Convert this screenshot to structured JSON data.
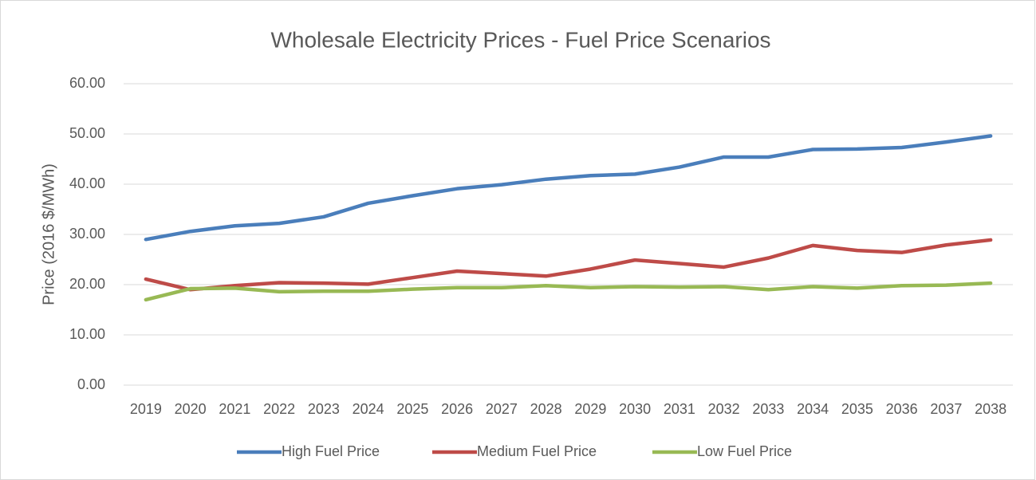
{
  "chart_data": {
    "type": "line",
    "title": "Wholesale Electricity Prices - Fuel Price Scenarios",
    "y_label": "Price (2016 $/MWh)",
    "categories": [
      "2019",
      "2020",
      "2021",
      "2022",
      "2023",
      "2024",
      "2025",
      "2026",
      "2027",
      "2028",
      "2029",
      "2030",
      "2031",
      "2032",
      "2033",
      "2034",
      "2035",
      "2036",
      "2037",
      "2038"
    ],
    "series": [
      {
        "name": "High Fuel Price",
        "color": "#4a7ebb",
        "values": [
          29.0,
          30.6,
          31.7,
          32.2,
          33.5,
          36.2,
          37.7,
          39.1,
          39.9,
          41.0,
          41.7,
          42.0,
          43.4,
          45.4,
          45.4,
          46.9,
          47.0,
          47.3,
          48.4,
          49.6
        ]
      },
      {
        "name": "Medium Fuel Price",
        "color": "#be4b48",
        "values": [
          21.1,
          19.0,
          19.8,
          20.4,
          20.3,
          20.1,
          21.4,
          22.7,
          22.2,
          21.7,
          23.1,
          24.9,
          24.2,
          23.5,
          25.3,
          27.8,
          26.8,
          26.4,
          27.9,
          28.9
        ]
      },
      {
        "name": "Low Fuel Price",
        "color": "#98b954",
        "values": [
          17.0,
          19.2,
          19.3,
          18.6,
          18.7,
          18.7,
          19.1,
          19.4,
          19.4,
          19.8,
          19.4,
          19.6,
          19.5,
          19.6,
          19.0,
          19.6,
          19.3,
          19.8,
          19.9,
          20.3
        ]
      }
    ],
    "ylim": [
      0,
      60
    ],
    "yticks": [
      {
        "value": 0,
        "label": "0.00"
      },
      {
        "value": 10,
        "label": "10.00"
      },
      {
        "value": 20,
        "label": "20.00"
      },
      {
        "value": 30,
        "label": "30.00"
      },
      {
        "value": 40,
        "label": "40.00"
      },
      {
        "value": 50,
        "label": "50.00"
      },
      {
        "value": 60,
        "label": "60.00"
      }
    ],
    "grid": true,
    "legend": "bottom"
  }
}
